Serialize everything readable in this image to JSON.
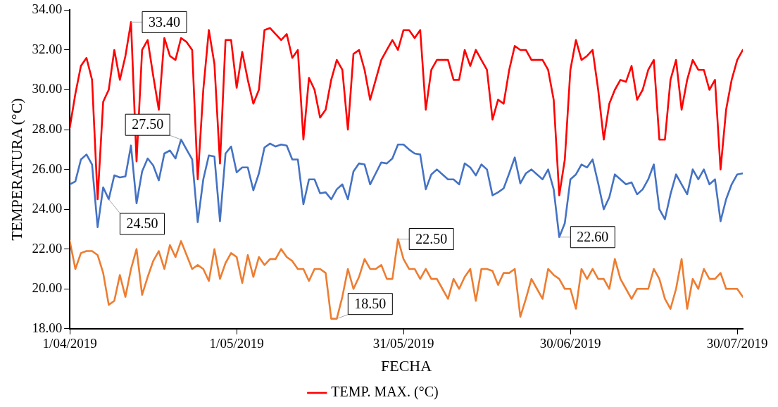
{
  "chart_data": {
    "type": "line",
    "xlabel": "FECHA",
    "ylabel": "TEMPERATURA (°C)",
    "x": [
      "2019-04-01",
      "2019-04-02",
      "2019-04-03",
      "2019-04-04",
      "2019-04-05",
      "2019-04-06",
      "2019-04-07",
      "2019-04-08",
      "2019-04-09",
      "2019-04-10",
      "2019-04-11",
      "2019-04-12",
      "2019-04-13",
      "2019-04-14",
      "2019-04-15",
      "2019-04-16",
      "2019-04-17",
      "2019-04-18",
      "2019-04-19",
      "2019-04-20",
      "2019-04-21",
      "2019-04-22",
      "2019-04-23",
      "2019-04-24",
      "2019-04-25",
      "2019-04-26",
      "2019-04-27",
      "2019-04-28",
      "2019-04-29",
      "2019-04-30",
      "2019-05-01",
      "2019-05-02",
      "2019-05-03",
      "2019-05-04",
      "2019-05-05",
      "2019-05-06",
      "2019-05-07",
      "2019-05-08",
      "2019-05-09",
      "2019-05-10",
      "2019-05-11",
      "2019-05-12",
      "2019-05-13",
      "2019-05-14",
      "2019-05-15",
      "2019-05-16",
      "2019-05-17",
      "2019-05-18",
      "2019-05-19",
      "2019-05-20",
      "2019-05-21",
      "2019-05-22",
      "2019-05-23",
      "2019-05-24",
      "2019-05-25",
      "2019-05-26",
      "2019-05-27",
      "2019-05-28",
      "2019-05-29",
      "2019-05-30",
      "2019-05-31",
      "2019-06-01",
      "2019-06-02",
      "2019-06-03",
      "2019-06-04",
      "2019-06-05",
      "2019-06-06",
      "2019-06-07",
      "2019-06-08",
      "2019-06-09",
      "2019-06-10",
      "2019-06-11",
      "2019-06-12",
      "2019-06-13",
      "2019-06-14",
      "2019-06-15",
      "2019-06-16",
      "2019-06-17",
      "2019-06-18",
      "2019-06-19",
      "2019-06-20",
      "2019-06-21",
      "2019-06-22",
      "2019-06-23",
      "2019-06-24",
      "2019-06-25",
      "2019-06-26",
      "2019-06-27",
      "2019-06-28",
      "2019-06-29",
      "2019-06-30",
      "2019-07-01",
      "2019-07-02",
      "2019-07-03",
      "2019-07-04",
      "2019-07-05",
      "2019-07-06",
      "2019-07-07",
      "2019-07-08",
      "2019-07-09",
      "2019-07-10",
      "2019-07-11",
      "2019-07-12",
      "2019-07-13",
      "2019-07-14",
      "2019-07-15",
      "2019-07-16",
      "2019-07-17",
      "2019-07-18",
      "2019-07-19",
      "2019-07-20",
      "2019-07-21",
      "2019-07-22",
      "2019-07-23",
      "2019-07-24",
      "2019-07-25",
      "2019-07-26",
      "2019-07-27",
      "2019-07-28",
      "2019-07-29",
      "2019-07-30",
      "2019-07-31"
    ],
    "series": [
      {
        "name": "TEMP. MAX. (°C)",
        "color": "#ff0000",
        "values": [
          28.1,
          29.8,
          31.2,
          31.6,
          30.5,
          24.5,
          29.4,
          30.0,
          32.0,
          30.5,
          31.7,
          33.4,
          26.4,
          32.0,
          32.5,
          30.7,
          29.0,
          32.6,
          31.7,
          31.5,
          32.6,
          32.4,
          32.0,
          25.5,
          30.0,
          33.0,
          31.3,
          26.3,
          32.5,
          32.5,
          30.1,
          31.9,
          30.5,
          29.3,
          30.0,
          33.0,
          33.1,
          32.8,
          32.5,
          32.8,
          31.6,
          32.0,
          27.5,
          30.6,
          30.0,
          28.6,
          29.0,
          30.5,
          31.5,
          31.0,
          28.0,
          31.8,
          32.0,
          31.0,
          29.5,
          30.5,
          31.5,
          32.0,
          32.5,
          32.0,
          33.0,
          33.0,
          32.6,
          33.0,
          29.0,
          31.0,
          31.5,
          31.5,
          31.5,
          30.5,
          30.5,
          32.0,
          31.2,
          32.0,
          31.5,
          31.0,
          28.5,
          29.5,
          29.3,
          31.0,
          32.2,
          32.0,
          32.0,
          31.5,
          31.5,
          31.5,
          31.0,
          29.5,
          24.7,
          26.5,
          31.0,
          32.5,
          31.5,
          31.7,
          32.0,
          30.0,
          27.5,
          29.3,
          30.0,
          30.5,
          30.4,
          31.2,
          29.5,
          30.0,
          31.0,
          31.5,
          27.5,
          27.5,
          30.5,
          31.5,
          29.0,
          30.5,
          31.5,
          31.0,
          31.0,
          30.0,
          30.5,
          26.0,
          29.0,
          30.5,
          31.5,
          32.0
        ]
      },
      {
        "color": "#4472c4",
        "values": [
          25.25,
          25.4,
          26.5,
          26.75,
          26.25,
          23.1,
          25.1,
          24.5,
          25.7,
          25.6,
          25.65,
          27.2,
          24.3,
          25.9,
          26.55,
          26.2,
          25.45,
          26.8,
          26.95,
          26.55,
          27.5,
          27.0,
          26.5,
          23.35,
          25.5,
          26.7,
          26.65,
          23.4,
          26.8,
          27.15,
          25.85,
          26.1,
          26.1,
          24.95,
          25.8,
          27.1,
          27.3,
          27.15,
          27.25,
          27.2,
          26.5,
          26.5,
          24.25,
          25.5,
          25.5,
          24.8,
          24.85,
          24.5,
          25.0,
          25.25,
          24.5,
          25.9,
          26.3,
          26.25,
          25.25,
          25.8,
          26.35,
          26.3,
          26.55,
          27.25,
          27.25,
          27.0,
          26.8,
          26.75,
          25.0,
          25.75,
          26.0,
          25.75,
          25.5,
          25.5,
          25.25,
          26.3,
          26.1,
          25.7,
          26.25,
          26.0,
          24.7,
          24.85,
          25.05,
          25.8,
          26.6,
          25.3,
          25.8,
          26.0,
          25.75,
          25.5,
          26.0,
          25.0,
          22.6,
          23.3,
          25.5,
          25.75,
          26.25,
          26.1,
          26.5,
          25.3,
          24.0,
          24.6,
          25.75,
          25.5,
          25.25,
          25.35,
          24.75,
          25.0,
          25.5,
          26.25,
          24.0,
          23.5,
          24.75,
          25.75,
          25.25,
          24.75,
          26.0,
          25.5,
          26.0,
          25.25,
          25.5,
          23.4,
          24.5,
          25.25,
          25.75,
          25.8
        ]
      },
      {
        "color": "#ed7d31",
        "values": [
          22.4,
          21.0,
          21.8,
          21.9,
          21.9,
          21.7,
          20.8,
          19.2,
          19.4,
          20.7,
          19.6,
          21.0,
          22.0,
          19.7,
          20.6,
          21.4,
          21.9,
          21.0,
          22.2,
          21.6,
          22.4,
          21.7,
          21.0,
          21.2,
          21.0,
          20.4,
          22.0,
          20.5,
          21.3,
          21.8,
          21.6,
          20.3,
          21.7,
          20.6,
          21.6,
          21.2,
          21.5,
          21.5,
          22.0,
          21.6,
          21.4,
          21.0,
          21.0,
          20.4,
          21.0,
          21.0,
          20.8,
          18.5,
          18.5,
          19.6,
          21.0,
          20.0,
          20.6,
          21.5,
          21.0,
          21.0,
          21.2,
          20.5,
          20.5,
          22.5,
          21.5,
          21.0,
          21.0,
          20.5,
          21.0,
          20.5,
          20.5,
          20.0,
          19.5,
          20.5,
          20.0,
          20.6,
          21.0,
          19.4,
          21.0,
          21.0,
          20.9,
          20.2,
          20.8,
          20.8,
          21.0,
          18.6,
          19.5,
          20.5,
          20.0,
          19.5,
          21.0,
          20.7,
          20.5,
          20.0,
          20.0,
          19.0,
          21.0,
          20.5,
          21.0,
          20.5,
          20.5,
          20.0,
          21.5,
          20.5,
          20.0,
          19.5,
          20.0,
          20.0,
          20.0,
          21.0,
          20.5,
          19.5,
          19.0,
          20.0,
          21.5,
          19.0,
          20.5,
          20.0,
          21.0,
          20.5,
          20.5,
          20.8,
          20.0,
          20.0,
          20.0,
          19.6
        ]
      }
    ],
    "annotations": [
      {
        "text": "33.40",
        "x": "2019-04-12",
        "y": 33.4
      },
      {
        "text": "27.50",
        "x": "2019-04-21",
        "y": 27.5
      },
      {
        "text": "24.50",
        "x": "2019-04-08",
        "y": 24.5
      },
      {
        "text": "22.50",
        "x": "2019-05-30",
        "y": 22.5
      },
      {
        "text": "22.60",
        "x": "2019-06-28",
        "y": 22.6
      },
      {
        "text": "18.50",
        "x": "2019-05-19",
        "y": 18.5
      }
    ],
    "xlim": [
      "2019-04-01",
      "2019-07-31"
    ],
    "xticks": [
      {
        "value": "2019-04-01",
        "label": "1/04/2019"
      },
      {
        "value": "2019-05-01",
        "label": "1/05/2019"
      },
      {
        "value": "2019-05-31",
        "label": "31/05/2019"
      },
      {
        "value": "2019-06-30",
        "label": "30/06/2019"
      },
      {
        "value": "2019-07-30",
        "label": "30/07/2019"
      }
    ],
    "ylim": [
      18,
      34
    ],
    "yticks": [
      {
        "value": 18,
        "label": "18.00"
      },
      {
        "value": 20,
        "label": "20.00"
      },
      {
        "value": 22,
        "label": "22.00"
      },
      {
        "value": 24,
        "label": "24.00"
      },
      {
        "value": 26,
        "label": "26.00"
      },
      {
        "value": 28,
        "label": "28.00"
      },
      {
        "value": 30,
        "label": "30.00"
      },
      {
        "value": 32,
        "label": "32.00"
      },
      {
        "value": 34,
        "label": "34.00"
      }
    ],
    "grid": false,
    "legend": "bottom",
    "marker": "none",
    "line_style": "solid"
  }
}
